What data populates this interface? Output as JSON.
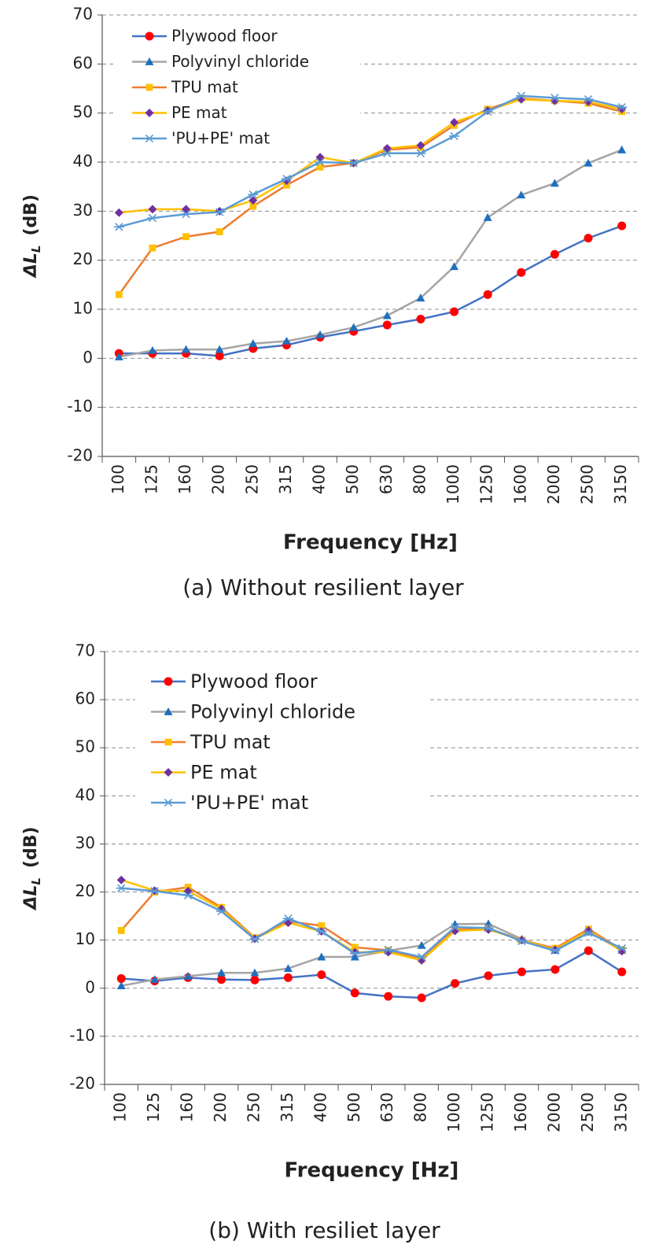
{
  "chart_data": [
    {
      "type": "line",
      "title": "(a) Without resilient layer",
      "xlabel": "Frequency [Hz]",
      "ylabel": "ΔL",
      "ylabel_sub": "L",
      "ylabel_unit": "(dB)",
      "categories": [
        "100",
        "125",
        "160",
        "200",
        "250",
        "315",
        "400",
        "500",
        "630",
        "800",
        "1000",
        "1250",
        "1600",
        "2000",
        "2500",
        "3150"
      ],
      "ylim": [
        -20,
        70
      ],
      "yticks": [
        -20,
        -10,
        0,
        10,
        20,
        30,
        40,
        50,
        60,
        70
      ],
      "grid": true,
      "legend": "upper left",
      "series": [
        {
          "name": "Plywood floor",
          "color": "#4472c4",
          "marker": "circle",
          "marker_color": "#ff0000",
          "values": [
            1,
            1,
            1,
            0.5,
            2,
            2.7,
            4.3,
            5.5,
            6.8,
            8,
            9.5,
            13,
            17.5,
            21.2,
            24.5,
            27
          ]
        },
        {
          "name": "Polyvinyl chloride",
          "color": "#a5a5a5",
          "marker": "triangle",
          "marker_color": "#1f6fbf",
          "values": [
            0.3,
            1.6,
            1.8,
            1.8,
            3,
            3.5,
            4.8,
            6.3,
            8.7,
            12.3,
            18.7,
            28.7,
            33.3,
            35.7,
            39.8,
            42.5
          ]
        },
        {
          "name": "TPU mat",
          "color": "#ed7d31",
          "marker": "square",
          "marker_color": "#ffc000",
          "values": [
            13,
            22.5,
            24.8,
            25.8,
            31,
            35.3,
            39,
            39.8,
            42.5,
            43,
            47.5,
            50.8,
            53,
            52.5,
            52,
            50.3
          ]
        },
        {
          "name": "PE mat",
          "color": "#ffc000",
          "marker": "diamond",
          "marker_color": "#7030a0",
          "values": [
            29.7,
            30.4,
            30.4,
            30,
            32.2,
            36.2,
            41,
            39.8,
            42.8,
            43.4,
            48.1,
            50.5,
            52.8,
            52.5,
            52.3,
            50.8
          ]
        },
        {
          "name": "'PU+PE' mat",
          "color": "#5b9bd5",
          "marker": "asterisk",
          "marker_color": "#5b9bd5",
          "values": [
            26.8,
            28.6,
            29.4,
            29.8,
            33.4,
            36.6,
            40,
            39.8,
            41.8,
            41.8,
            45.3,
            50.3,
            53.5,
            53.1,
            52.8,
            51.2
          ]
        }
      ]
    },
    {
      "type": "line",
      "title": "(b) With resiliet layer",
      "xlabel": "Frequency [Hz]",
      "ylabel": "ΔL",
      "ylabel_sub": "L",
      "ylabel_unit": "(dB)",
      "categories": [
        "100",
        "125",
        "160",
        "200",
        "250",
        "315",
        "400",
        "500",
        "630",
        "800",
        "1000",
        "1250",
        "1600",
        "2000",
        "2500",
        "3150"
      ],
      "ylim": [
        -20,
        70
      ],
      "yticks": [
        -20,
        -10,
        0,
        10,
        20,
        30,
        40,
        50,
        60,
        70
      ],
      "grid": true,
      "legend": "upper left",
      "series": [
        {
          "name": "Plywood floor",
          "color": "#4472c4",
          "marker": "circle",
          "marker_color": "#ff0000",
          "values": [
            2,
            1.5,
            2.2,
            1.8,
            1.7,
            2.2,
            2.8,
            -1,
            -1.7,
            -2,
            1,
            2.6,
            3.4,
            3.9,
            7.8,
            3.4
          ]
        },
        {
          "name": "Polyvinyl chloride",
          "color": "#a5a5a5",
          "marker": "triangle",
          "marker_color": "#1f6fbf",
          "values": [
            0.5,
            1.8,
            2.5,
            3.2,
            3.2,
            4.1,
            6.5,
            6.5,
            7.8,
            8.9,
            13.3,
            13.4,
            10.2,
            7.9,
            11.7,
            7.9
          ]
        },
        {
          "name": "TPU mat",
          "color": "#ed7d31",
          "marker": "square",
          "marker_color": "#ffc000",
          "values": [
            12,
            20,
            21,
            16.8,
            10.5,
            13.9,
            13,
            8.5,
            7.9,
            6,
            12.2,
            12.4,
            10,
            8.3,
            12.3,
            8
          ]
        },
        {
          "name": "PE mat",
          "color": "#ffc000",
          "marker": "diamond",
          "marker_color": "#7030a0",
          "values": [
            22.5,
            20.3,
            20.2,
            16.5,
            10.3,
            13.6,
            11.8,
            7.5,
            7.5,
            5.8,
            11.9,
            12.2,
            10,
            8,
            12,
            7.7
          ]
        },
        {
          "name": "'PU+PE' mat",
          "color": "#5b9bd5",
          "marker": "asterisk",
          "marker_color": "#5b9bd5",
          "values": [
            20.8,
            20.2,
            19.3,
            16,
            10.2,
            14.5,
            11.8,
            7.2,
            8,
            6.5,
            12.7,
            12.5,
            9.8,
            7.8,
            11.5,
            8.3
          ]
        }
      ]
    }
  ]
}
